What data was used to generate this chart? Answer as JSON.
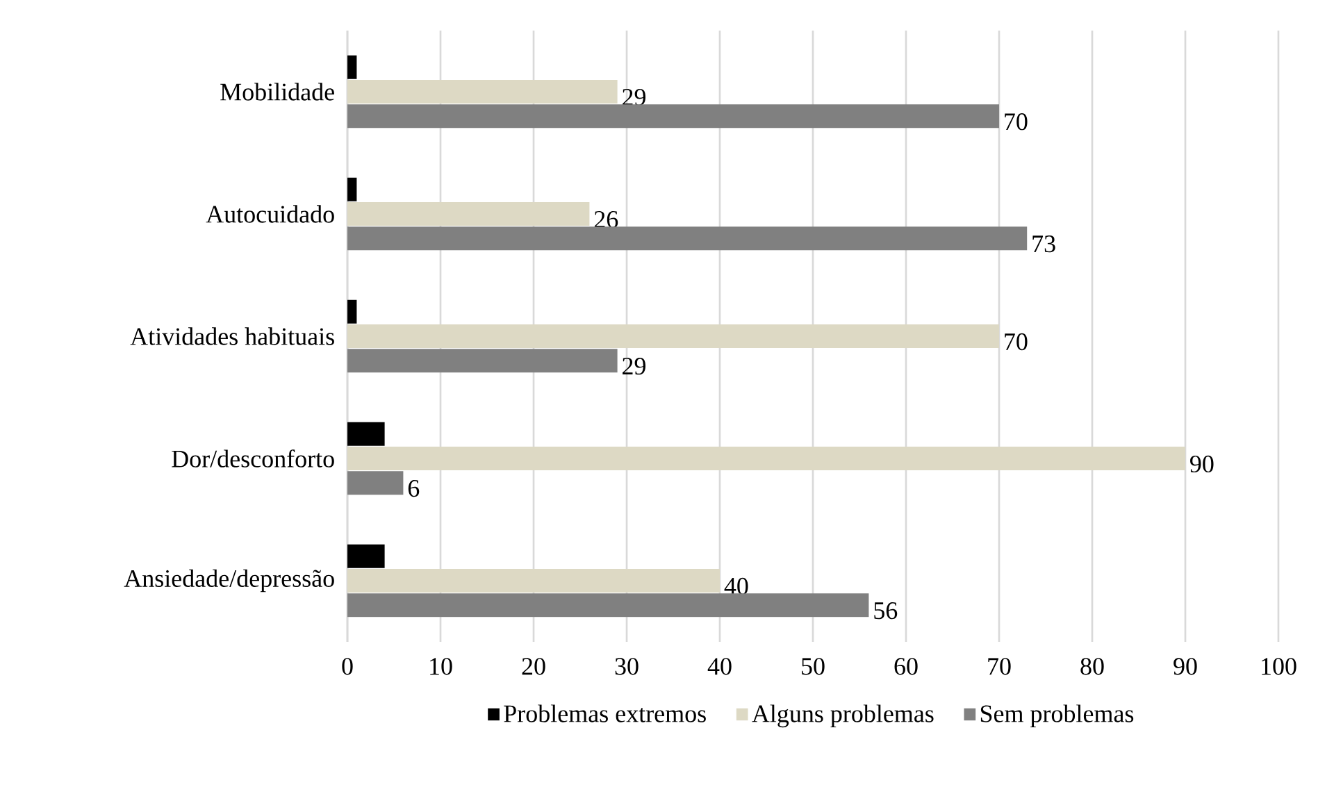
{
  "chart_data": {
    "type": "bar",
    "orientation": "horizontal",
    "categories": [
      "Mobilidade",
      "Autocuidado",
      "Atividades habituais",
      "Dor/desconforto",
      "Ansiedade/depressão"
    ],
    "series": [
      {
        "name": "Problemas extremos",
        "color": "#000000",
        "values": [
          1,
          1,
          1,
          4,
          4
        ]
      },
      {
        "name": "Alguns problemas",
        "color": "#ddd9c4",
        "values": [
          29,
          26,
          70,
          90,
          40
        ],
        "value_labels": [
          "29",
          "26",
          "70",
          "90",
          "40"
        ]
      },
      {
        "name": "Sem problemas",
        "color": "#808080",
        "values": [
          70,
          73,
          29,
          6,
          56
        ],
        "value_labels": [
          "70",
          "73",
          "29",
          "6",
          "56"
        ]
      }
    ],
    "xlim": [
      0,
      100
    ],
    "xticks": [
      0,
      10,
      20,
      30,
      40,
      50,
      60,
      70,
      80,
      90,
      100
    ],
    "grid": "x",
    "legend": "bottom"
  }
}
